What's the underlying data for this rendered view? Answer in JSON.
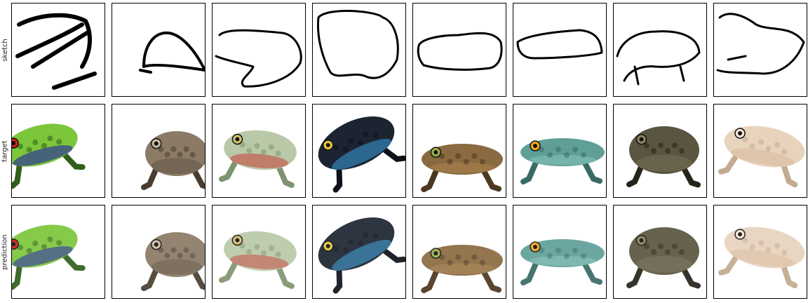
{
  "rows": [
    {
      "label": "sketch"
    },
    {
      "label": "target"
    },
    {
      "label": "prediction"
    }
  ],
  "columns": [
    {
      "subject": "red-eyed tree frog",
      "colors": {
        "body": "#7cc63a",
        "dark": "#2f5f1a",
        "accent": "#d2211c",
        "belly": "#3a4a8a"
      }
    },
    {
      "subject": "brown warty toad",
      "colors": {
        "body": "#8a7a66",
        "dark": "#4a3d30",
        "accent": "#c9b9a0",
        "belly": "#6e6050"
      }
    },
    {
      "subject": "pale green frog",
      "colors": {
        "body": "#b9c9a8",
        "dark": "#7e9470",
        "accent": "#d6c070",
        "belly": "#c26a5a"
      }
    },
    {
      "subject": "poison dart frog",
      "colors": {
        "body": "#1b2430",
        "dark": "#0d1118",
        "accent": "#e8c43a",
        "belly": "#2f78a8"
      }
    },
    {
      "subject": "horned frog",
      "colors": {
        "body": "#8a6a40",
        "dark": "#4b3820",
        "accent": "#9ab04a",
        "belly": "#a07a4a"
      }
    },
    {
      "subject": "flat blue-green frog",
      "colors": {
        "body": "#5f9f98",
        "dark": "#3a6a66",
        "accent": "#f2a51c",
        "belly": "#7ab8b0"
      }
    },
    {
      "subject": "dark mottled frog",
      "colors": {
        "body": "#5a5540",
        "dark": "#262318",
        "accent": "#8c8560",
        "belly": "#6c6650"
      }
    },
    {
      "subject": "pale tree frog",
      "colors": {
        "body": "#e8d3bd",
        "dark": "#c4aa90",
        "accent": "#f3e6d6",
        "belly": "#dcc2a6"
      }
    }
  ]
}
